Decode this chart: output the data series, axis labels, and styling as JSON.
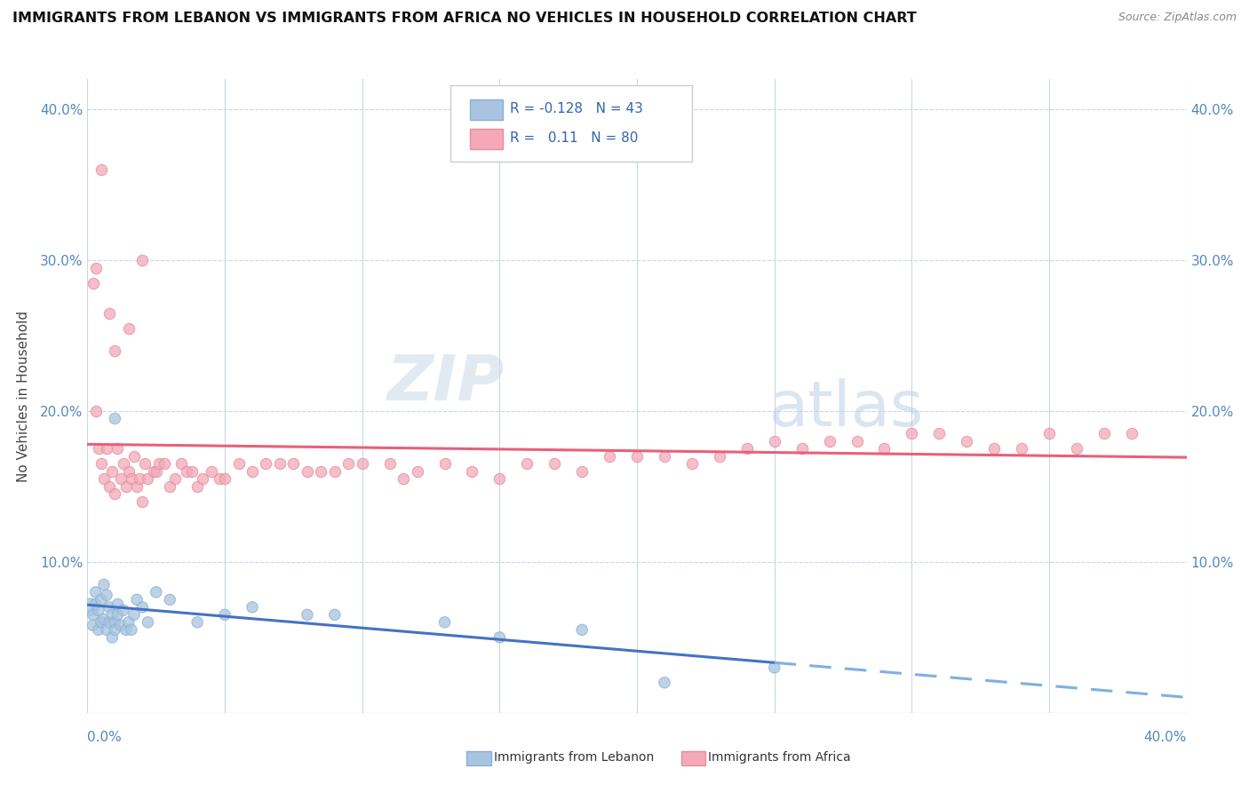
{
  "title": "IMMIGRANTS FROM LEBANON VS IMMIGRANTS FROM AFRICA NO VEHICLES IN HOUSEHOLD CORRELATION CHART",
  "source": "Source: ZipAtlas.com",
  "ylabel": "No Vehicles in Household",
  "xlim": [
    0.0,
    0.4
  ],
  "ylim": [
    0.0,
    0.42
  ],
  "lebanon_R": -0.128,
  "lebanon_N": 43,
  "africa_R": 0.11,
  "africa_N": 80,
  "lebanon_color": "#a8c4e0",
  "africa_color": "#f4a8b8",
  "lebanon_line_solid_color": "#4472c4",
  "lebanon_line_dash_color": "#7fb0e0",
  "africa_line_color": "#e8607a",
  "watermark1": "ZIP",
  "watermark2": "atlas",
  "lebanon_x": [
    0.001,
    0.002,
    0.002,
    0.003,
    0.003,
    0.004,
    0.004,
    0.005,
    0.005,
    0.006,
    0.006,
    0.007,
    0.007,
    0.008,
    0.008,
    0.009,
    0.009,
    0.01,
    0.01,
    0.011,
    0.011,
    0.012,
    0.013,
    0.014,
    0.015,
    0.016,
    0.017,
    0.018,
    0.02,
    0.022,
    0.025,
    0.03,
    0.04,
    0.05,
    0.06,
    0.08,
    0.09,
    0.13,
    0.15,
    0.18,
    0.21,
    0.25,
    0.01
  ],
  "lebanon_y": [
    0.07,
    0.065,
    0.058,
    0.072,
    0.08,
    0.068,
    0.055,
    0.075,
    0.06,
    0.062,
    0.085,
    0.078,
    0.055,
    0.06,
    0.07,
    0.065,
    0.05,
    0.06,
    0.055,
    0.065,
    0.072,
    0.058,
    0.068,
    0.055,
    0.06,
    0.055,
    0.065,
    0.075,
    0.07,
    0.06,
    0.08,
    0.075,
    0.06,
    0.065,
    0.07,
    0.065,
    0.065,
    0.06,
    0.05,
    0.055,
    0.02,
    0.03,
    0.195
  ],
  "lebanon_sizes": [
    200,
    80,
    80,
    80,
    80,
    80,
    80,
    80,
    80,
    80,
    80,
    80,
    80,
    80,
    80,
    80,
    80,
    80,
    80,
    80,
    80,
    80,
    80,
    80,
    80,
    80,
    80,
    80,
    80,
    80,
    80,
    80,
    80,
    80,
    80,
    80,
    80,
    80,
    80,
    80,
    80,
    80,
    80
  ],
  "africa_x": [
    0.002,
    0.003,
    0.004,
    0.005,
    0.006,
    0.007,
    0.008,
    0.009,
    0.01,
    0.011,
    0.012,
    0.013,
    0.014,
    0.015,
    0.016,
    0.017,
    0.018,
    0.019,
    0.02,
    0.021,
    0.022,
    0.024,
    0.025,
    0.026,
    0.028,
    0.03,
    0.032,
    0.034,
    0.036,
    0.038,
    0.04,
    0.042,
    0.045,
    0.048,
    0.05,
    0.055,
    0.06,
    0.065,
    0.07,
    0.075,
    0.08,
    0.085,
    0.09,
    0.095,
    0.1,
    0.11,
    0.115,
    0.12,
    0.13,
    0.14,
    0.15,
    0.16,
    0.17,
    0.18,
    0.19,
    0.2,
    0.21,
    0.22,
    0.23,
    0.24,
    0.25,
    0.26,
    0.27,
    0.28,
    0.29,
    0.3,
    0.31,
    0.32,
    0.33,
    0.34,
    0.35,
    0.36,
    0.37,
    0.38,
    0.003,
    0.005,
    0.008,
    0.01,
    0.015,
    0.02
  ],
  "africa_y": [
    0.285,
    0.2,
    0.175,
    0.165,
    0.155,
    0.175,
    0.15,
    0.16,
    0.145,
    0.175,
    0.155,
    0.165,
    0.15,
    0.16,
    0.155,
    0.17,
    0.15,
    0.155,
    0.14,
    0.165,
    0.155,
    0.16,
    0.16,
    0.165,
    0.165,
    0.15,
    0.155,
    0.165,
    0.16,
    0.16,
    0.15,
    0.155,
    0.16,
    0.155,
    0.155,
    0.165,
    0.16,
    0.165,
    0.165,
    0.165,
    0.16,
    0.16,
    0.16,
    0.165,
    0.165,
    0.165,
    0.155,
    0.16,
    0.165,
    0.16,
    0.155,
    0.165,
    0.165,
    0.16,
    0.17,
    0.17,
    0.17,
    0.165,
    0.17,
    0.175,
    0.18,
    0.175,
    0.18,
    0.18,
    0.175,
    0.185,
    0.185,
    0.18,
    0.175,
    0.175,
    0.185,
    0.175,
    0.185,
    0.185,
    0.295,
    0.36,
    0.265,
    0.24,
    0.255,
    0.3
  ]
}
